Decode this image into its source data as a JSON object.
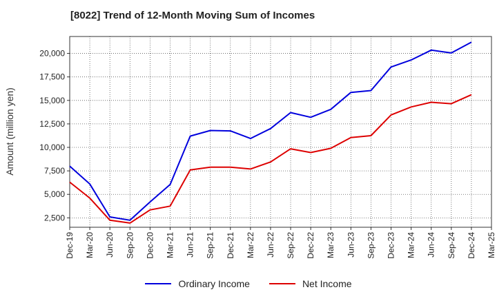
{
  "chart_data": {
    "type": "line",
    "title": "[8022]  Trend of 12-Month Moving Sum of Incomes",
    "xlabel": "",
    "ylabel": "Amount (million yen)",
    "categories": [
      "Dec-19",
      "Mar-20",
      "Jun-20",
      "Sep-20",
      "Dec-20",
      "Mar-21",
      "Jun-21",
      "Sep-21",
      "Dec-21",
      "Mar-22",
      "Jun-22",
      "Sep-22",
      "Dec-22",
      "Mar-23",
      "Jun-23",
      "Sep-23",
      "Dec-23",
      "Mar-24",
      "Jun-24",
      "Sep-24",
      "Dec-24",
      "Mar-25"
    ],
    "yticks": [
      2500,
      5000,
      7500,
      10000,
      12500,
      15000,
      17500,
      20000
    ],
    "ytick_labels": [
      "2,500",
      "5,000",
      "7,500",
      "10,000",
      "12,500",
      "15,000",
      "17,500",
      "20,000"
    ],
    "ylim": [
      1500,
      21800
    ],
    "grid": true,
    "legend_position": "bottom",
    "series": [
      {
        "name": "Ordinary Income",
        "color": "#0000dd",
        "values": [
          8000,
          6100,
          2600,
          2250,
          4200,
          6050,
          11200,
          11800,
          11750,
          10950,
          12000,
          13700,
          13200,
          14050,
          15850,
          16050,
          18550,
          19300,
          20350,
          20050,
          21200,
          null
        ]
      },
      {
        "name": "Net Income",
        "color": "#dd0000",
        "values": [
          6300,
          4600,
          2250,
          1950,
          3350,
          3750,
          7600,
          7900,
          7900,
          7700,
          8450,
          9850,
          9450,
          9900,
          11050,
          11250,
          13450,
          14300,
          14800,
          14650,
          15600,
          null
        ]
      }
    ]
  }
}
